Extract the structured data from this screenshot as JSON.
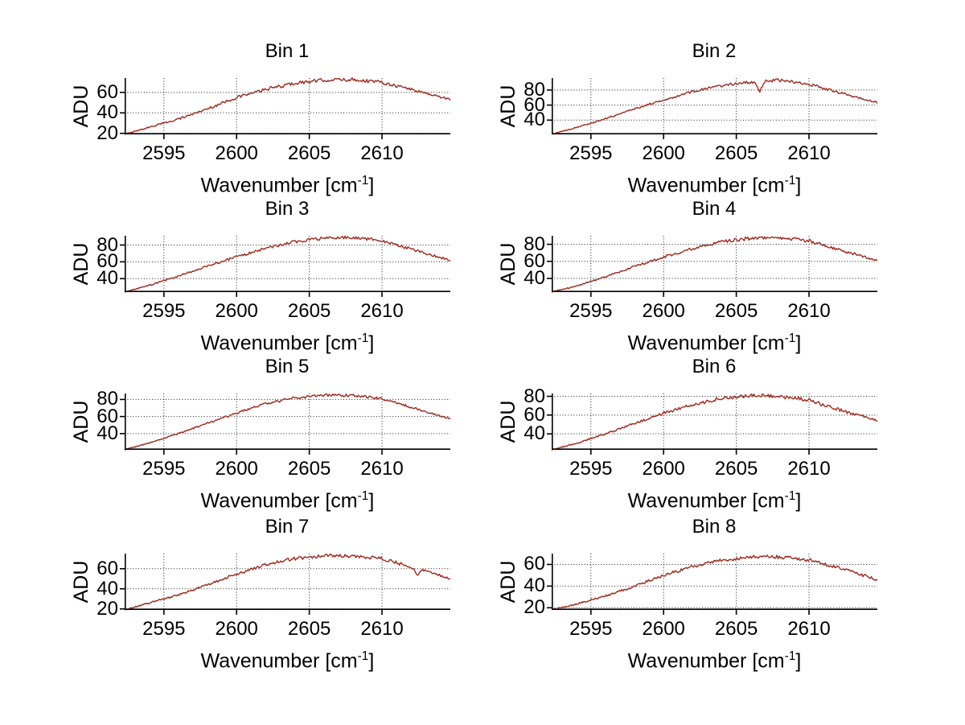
{
  "figure": {
    "ylabel": "ADU",
    "xlabel": {
      "prefix": "Wavenumber [cm",
      "sup": "-1",
      "suffix": "]"
    },
    "colors": {
      "background": "#ffffff",
      "axis": "#000000",
      "grid": "#1a1a1a",
      "text": "#000000",
      "trace_blue": "#8a9ec2",
      "trace_orange": "#e08a28",
      "trace_dark_red": "#9e1e1e"
    },
    "grid": true,
    "legend": null,
    "layout_note": "4 rows x 2 columns of spectra subplots"
  },
  "chart_data": [
    {
      "type": "line",
      "title": "Bin 1",
      "xlabel": "Wavenumber [cm^-1]",
      "ylabel": "ADU",
      "xlim": [
        2592.3,
        2614.7
      ],
      "ylim": [
        19,
        74
      ],
      "xticks": [
        2595,
        2600,
        2605,
        2610
      ],
      "yticks": [
        20,
        40,
        60
      ],
      "x": [
        2592.3,
        2594,
        2596,
        2598,
        2600,
        2602,
        2604,
        2606,
        2608,
        2610,
        2612,
        2614.7
      ],
      "y": [
        19,
        26,
        34,
        44,
        55,
        63,
        69,
        72,
        72.5,
        70,
        63,
        53
      ],
      "noise_adu": 1.6,
      "dip": null
    },
    {
      "type": "line",
      "title": "Bin 2",
      "xlabel": "Wavenumber [cm^-1]",
      "ylabel": "ADU",
      "xlim": [
        2592.3,
        2614.7
      ],
      "ylim": [
        21,
        96
      ],
      "xticks": [
        2595,
        2600,
        2605,
        2610
      ],
      "yticks": [
        40,
        60,
        80
      ],
      "x": [
        2592.3,
        2594,
        2596,
        2598,
        2600,
        2602,
        2604,
        2606,
        2608,
        2610,
        2612,
        2614.7
      ],
      "y": [
        21,
        30,
        42,
        55,
        67,
        78,
        86,
        91,
        93,
        88,
        77,
        63
      ],
      "noise_adu": 1.8,
      "dip": {
        "x": 2606.6,
        "depth": 14
      }
    },
    {
      "type": "line",
      "title": "Bin 3",
      "xlabel": "Wavenumber [cm^-1]",
      "ylabel": "ADU",
      "xlim": [
        2592.3,
        2614.7
      ],
      "ylim": [
        24,
        91
      ],
      "xticks": [
        2595,
        2600,
        2605,
        2610
      ],
      "yticks": [
        40,
        60,
        80
      ],
      "x": [
        2592.3,
        2594,
        2596,
        2598,
        2600,
        2602,
        2604,
        2606,
        2608,
        2610,
        2612,
        2614.7
      ],
      "y": [
        24,
        32,
        43,
        55,
        66,
        76,
        84,
        88,
        89,
        85,
        75,
        62
      ],
      "noise_adu": 1.7,
      "dip": null
    },
    {
      "type": "line",
      "title": "Bin 4",
      "xlabel": "Wavenumber [cm^-1]",
      "ylabel": "ADU",
      "xlim": [
        2592.3,
        2614.7
      ],
      "ylim": [
        24,
        90
      ],
      "xticks": [
        2595,
        2600,
        2605,
        2610
      ],
      "yticks": [
        40,
        60,
        80
      ],
      "x": [
        2592.3,
        2594,
        2596,
        2598,
        2600,
        2602,
        2604,
        2606,
        2608,
        2610,
        2612,
        2614.7
      ],
      "y": [
        24,
        31,
        42,
        54,
        65,
        75,
        83,
        87,
        88,
        84,
        74,
        61
      ],
      "noise_adu": 1.8,
      "dip": null
    },
    {
      "type": "line",
      "title": "Bin 5",
      "xlabel": "Wavenumber [cm^-1]",
      "ylabel": "ADU",
      "xlim": [
        2592.3,
        2614.7
      ],
      "ylim": [
        21,
        87
      ],
      "xticks": [
        2595,
        2600,
        2605,
        2610
      ],
      "yticks": [
        40,
        60,
        80
      ],
      "x": [
        2592.3,
        2594,
        2596,
        2598,
        2600,
        2602,
        2604,
        2606,
        2608,
        2610,
        2612,
        2614.7
      ],
      "y": [
        21,
        29,
        40,
        52,
        64,
        75,
        82,
        85,
        84.5,
        81,
        71,
        57
      ],
      "noise_adu": 1.5,
      "dip": null
    },
    {
      "type": "line",
      "title": "Bin 6",
      "xlabel": "Wavenumber [cm^-1]",
      "ylabel": "ADU",
      "xlim": [
        2592.3,
        2614.7
      ],
      "ylim": [
        23,
        83
      ],
      "xticks": [
        2595,
        2600,
        2605,
        2610
      ],
      "yticks": [
        40,
        60,
        80
      ],
      "x": [
        2592.3,
        2594,
        2596,
        2598,
        2600,
        2602,
        2604,
        2606,
        2608,
        2610,
        2612,
        2614.7
      ],
      "y": [
        23,
        30,
        40,
        51,
        62,
        71,
        78,
        81,
        80,
        76,
        66,
        54
      ],
      "noise_adu": 1.9,
      "dip": null
    },
    {
      "type": "line",
      "title": "Bin 7",
      "xlabel": "Wavenumber [cm^-1]",
      "ylabel": "ADU",
      "xlim": [
        2592.3,
        2614.7
      ],
      "ylim": [
        19,
        75
      ],
      "xticks": [
        2595,
        2600,
        2605,
        2610
      ],
      "yticks": [
        20,
        40,
        60
      ],
      "x": [
        2592.3,
        2594,
        2596,
        2598,
        2600,
        2602,
        2604,
        2606,
        2608,
        2610,
        2612,
        2614.7
      ],
      "y": [
        19,
        26,
        34,
        44,
        55,
        64,
        70,
        73,
        73,
        70,
        62,
        50
      ],
      "noise_adu": 1.6,
      "dip": {
        "x": 2612.4,
        "depth": 6
      }
    },
    {
      "type": "line",
      "title": "Bin 8",
      "xlabel": "Wavenumber [cm^-1]",
      "ylabel": "ADU",
      "xlim": [
        2592.3,
        2614.7
      ],
      "ylim": [
        18,
        70
      ],
      "xticks": [
        2595,
        2600,
        2605,
        2610
      ],
      "yticks": [
        20,
        40,
        60
      ],
      "x": [
        2592.3,
        2594,
        2596,
        2598,
        2600,
        2602,
        2604,
        2606,
        2608,
        2610,
        2612,
        2614.7
      ],
      "y": [
        18,
        23.5,
        31,
        40,
        50,
        58,
        64,
        67,
        67,
        64,
        57,
        46
      ],
      "noise_adu": 1.6,
      "dip": null
    }
  ]
}
